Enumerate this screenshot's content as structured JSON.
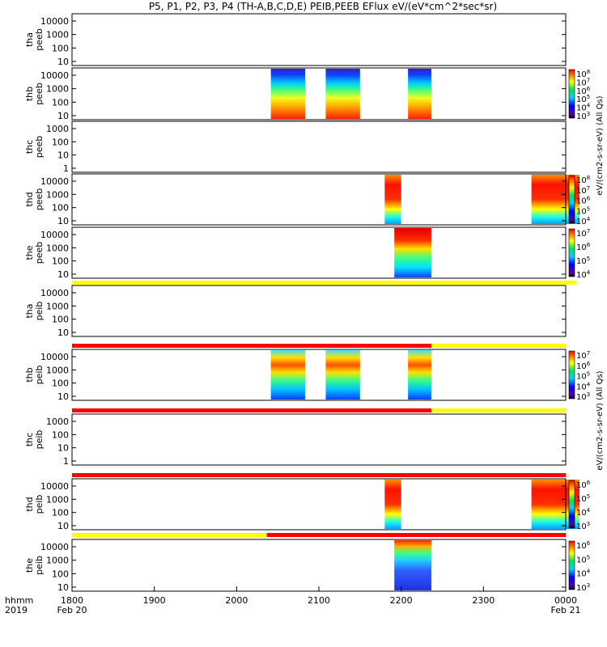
{
  "chart_data": {
    "type": "heatmap",
    "title": "P5, P1, P2, P3, P4 (TH-A,B,C,D,E) PEIB,PEEB EFlux eV/(eV*cm^2*sec*sr)",
    "x_axis": {
      "range_hhmm": [
        "1800",
        "0000"
      ],
      "tick_labels": [
        "1800",
        "1900",
        "2000",
        "2100",
        "2200",
        "2300",
        "0000"
      ],
      "row_label": "hhmm",
      "year_label": "2019",
      "start_date": "Feb 20",
      "end_date": "Feb 21"
    },
    "colorbar_labels": {
      "peeb": "eV/(cm2-s-sr-eV)",
      "peib": "eV/(cm2-s-sr-eV)",
      "suffix": "(All Qs)"
    },
    "panels": [
      {
        "id": "tha_peeb",
        "label": [
          "tha",
          "peeb"
        ],
        "ticks": [
          "10000",
          "1000",
          "100",
          "10"
        ],
        "data": [],
        "colorbar": null,
        "quality_bar": null
      },
      {
        "id": "thb_peeb",
        "label": [
          "thb",
          "peeb"
        ],
        "ticks": [
          "10000",
          "1000",
          "100",
          "10"
        ],
        "data": [
          {
            "start": "2025",
            "end": "2050"
          },
          {
            "start": "2065",
            "end": "2090"
          },
          {
            "start": "2165",
            "end": "2182"
          }
        ],
        "colorbar": {
          "tick_labels": [
            "10^8",
            "10^7",
            "10^6",
            "10^5",
            "10^4",
            "10^3"
          ],
          "overlap": "(All Qs)"
        },
        "quality_bar": null
      },
      {
        "id": "thc_peeb",
        "label": [
          "thc",
          "peeb"
        ],
        "ticks": [
          "1000",
          "100",
          "10",
          "1"
        ],
        "data": [],
        "colorbar": null,
        "quality_bar": null
      },
      {
        "id": "thd_peeb",
        "label": [
          "thd",
          "peeb"
        ],
        "ticks": [
          "10000",
          "1000",
          "100",
          "10"
        ],
        "data": [
          {
            "start": "2148",
            "end": "2160"
          },
          {
            "start": "2335",
            "end": "2370"
          }
        ],
        "colorbar": {
          "tick_labels": [
            "10^8",
            "10^7",
            "10^6",
            "10^5",
            "10^4"
          ],
          "overlap": "(All Qs)"
        },
        "quality_bar": null
      },
      {
        "id": "the_peeb",
        "label": [
          "the",
          "peeb"
        ],
        "ticks": [
          "10000",
          "1000",
          "100",
          "10"
        ],
        "data": [
          {
            "start": "2155",
            "end": "2182"
          }
        ],
        "colorbar": {
          "tick_labels": [
            "10^7",
            "10^6",
            "10^5",
            "10^4"
          ],
          "overlap": "(All Qs)"
        },
        "quality_bar": [
          {
            "from": "1800",
            "to": "2368",
            "flag": "yellow"
          },
          {
            "from": "2368",
            "to": "0000",
            "flag": "red"
          }
        ]
      },
      {
        "id": "tha_peib",
        "label": [
          "tha",
          "peib"
        ],
        "ticks": [
          "10000",
          "1000",
          "100",
          "10"
        ],
        "data": [],
        "colorbar": null,
        "quality_bar": [
          {
            "from": "1800",
            "to": "2182",
            "flag": "red"
          },
          {
            "from": "2182",
            "to": "0000",
            "flag": "yellow"
          }
        ]
      },
      {
        "id": "thb_peib",
        "label": [
          "thb",
          "peib"
        ],
        "ticks": [
          "10000",
          "1000",
          "100",
          "10"
        ],
        "data": [
          {
            "start": "2025",
            "end": "2050"
          },
          {
            "start": "2065",
            "end": "2090"
          },
          {
            "start": "2165",
            "end": "2182"
          }
        ],
        "colorbar": {
          "tick_labels": [
            "10^7",
            "10^6",
            "10^5",
            "10^4",
            "10^3"
          ],
          "overlap": "(All Qs)"
        },
        "quality_bar": [
          {
            "from": "1800",
            "to": "2182",
            "flag": "red"
          },
          {
            "from": "2182",
            "to": "0000",
            "flag": "yellow"
          }
        ]
      },
      {
        "id": "thc_peib",
        "label": [
          "thc",
          "peib"
        ],
        "ticks": [
          "1000",
          "100",
          "10",
          "1"
        ],
        "data": [],
        "colorbar": null,
        "quality_bar": [
          {
            "from": "1800",
            "to": "0000",
            "flag": "red"
          }
        ]
      },
      {
        "id": "thd_peib",
        "label": [
          "thd",
          "peib"
        ],
        "ticks": [
          "10000",
          "1000",
          "100",
          "10"
        ],
        "data": [
          {
            "start": "2148",
            "end": "2160"
          },
          {
            "start": "2335",
            "end": "2370"
          }
        ],
        "colorbar": {
          "tick_labels": [
            "10^6",
            "10^5",
            "10^4",
            "10^3"
          ],
          "overlap": "(All Qs)"
        },
        "quality_bar": [
          {
            "from": "1800",
            "to": "2022",
            "flag": "yellow"
          },
          {
            "from": "2022",
            "to": "0000",
            "flag": "red"
          }
        ]
      },
      {
        "id": "the_peib",
        "label": [
          "the",
          "peib"
        ],
        "ticks": [
          "10000",
          "1000",
          "100",
          "10"
        ],
        "data": [
          {
            "start": "2155",
            "end": "2182"
          }
        ],
        "colorbar": {
          "tick_labels": [
            "10^6",
            "10^5",
            "10^4",
            "10^3"
          ],
          "overlap": "(All Qs)"
        },
        "quality_bar": null
      }
    ]
  }
}
